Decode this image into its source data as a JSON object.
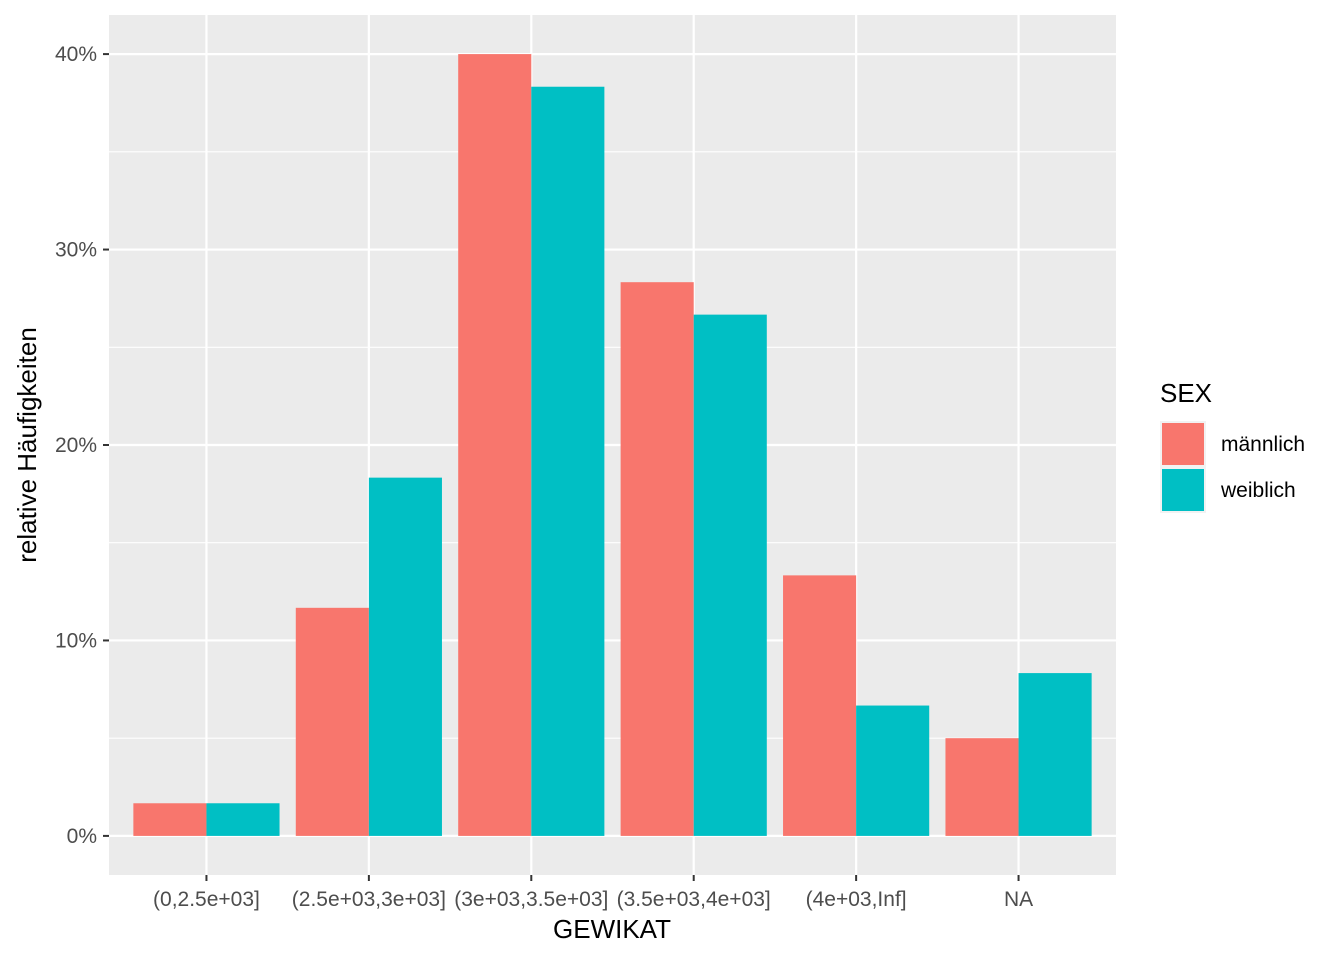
{
  "chart_data": {
    "type": "bar",
    "xlabel": "GEWIKAT",
    "ylabel": "relative Häufigkeiten",
    "categories": [
      "(0,2.5e+03]",
      "(2.5e+03,3e+03]",
      "(3e+03,3.5e+03]",
      "(3.5e+03,4e+03]",
      "(4e+03,Inf]",
      "NA"
    ],
    "ylim": [
      -0.02,
      0.42
    ],
    "yticks": [
      0,
      0.1,
      0.2,
      0.3,
      0.4
    ],
    "ytick_labels": [
      "0%",
      "10%",
      "20%",
      "30%",
      "40%"
    ],
    "grid": true,
    "legend": {
      "title": "SEX",
      "placement": "right"
    },
    "series": [
      {
        "name": "männlich",
        "color": "#F8766D",
        "values": [
          0.0167,
          0.1167,
          0.4,
          0.2833,
          0.1333,
          0.05
        ]
      },
      {
        "name": "weiblich",
        "color": "#00BFC4",
        "values": [
          0.0167,
          0.1833,
          0.3833,
          0.2667,
          0.0667,
          0.0833
        ]
      }
    ]
  }
}
